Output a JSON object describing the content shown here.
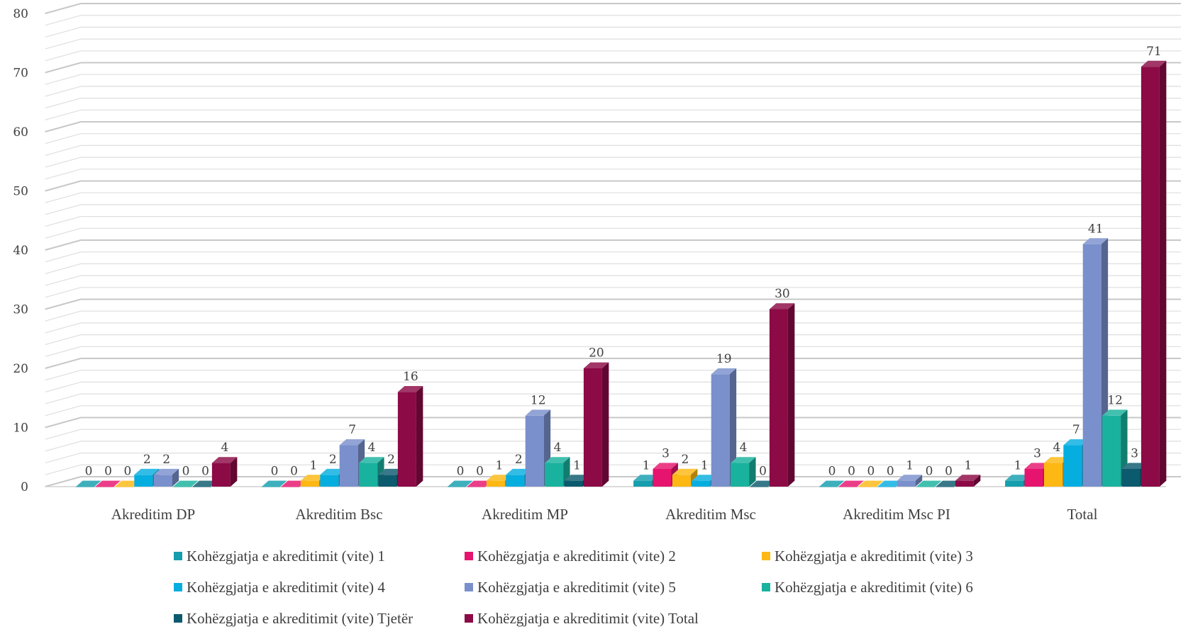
{
  "chart_data": {
    "type": "bar",
    "title": "",
    "xlabel": "",
    "ylabel": "",
    "ylim": [
      0,
      80
    ],
    "yticks": [
      "0",
      "10",
      "20",
      "30",
      "40",
      "50",
      "60",
      "70",
      "80"
    ],
    "grid": true,
    "legend_position": "bottom",
    "categories": [
      "Akreditim DP",
      "Akreditim Bsc",
      "Akreditim MP",
      "Akreditim Msc",
      "Akreditim Msc PI",
      "Total"
    ],
    "series": [
      {
        "name": "Kohëzgjatja e akreditimit (vite) 1",
        "color": "#149EAE",
        "values": [
          0,
          0,
          0,
          1,
          0,
          1
        ]
      },
      {
        "name": "Kohëzgjatja e akreditimit (vite) 2",
        "color": "#E6146E",
        "values": [
          0,
          0,
          0,
          3,
          0,
          3
        ]
      },
      {
        "name": "Kohëzgjatja e akreditimit (vite) 3",
        "color": "#FDB814",
        "values": [
          0,
          1,
          1,
          2,
          0,
          4
        ]
      },
      {
        "name": "Kohëzgjatja e akreditimit (vite) 4",
        "color": "#06AEE0",
        "values": [
          2,
          2,
          2,
          1,
          0,
          7
        ]
      },
      {
        "name": "Kohëzgjatja e akreditimit (vite) 5",
        "color": "#7A90CC",
        "values": [
          2,
          7,
          12,
          19,
          1,
          41
        ]
      },
      {
        "name": "Kohëzgjatja e akreditimit (vite) 6",
        "color": "#19B29E",
        "values": [
          0,
          4,
          4,
          4,
          0,
          12
        ]
      },
      {
        "name": "Kohëzgjatja e akreditimit (vite) Tjetër",
        "color": "#0C5A6E",
        "values": [
          0,
          2,
          1,
          0,
          0,
          3
        ]
      },
      {
        "name": "Kohëzgjatja e akreditimit (vite) Total",
        "color": "#8C0A46",
        "values": [
          4,
          16,
          20,
          30,
          1,
          71
        ]
      }
    ]
  }
}
